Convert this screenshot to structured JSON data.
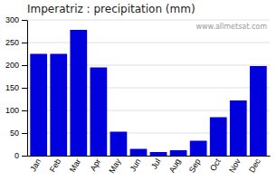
{
  "chart_data": {
    "type": "bar",
    "title": "Imperatriz : precipitation (mm)",
    "categories": [
      "Jan",
      "Feb",
      "Mar",
      "Apr",
      "May",
      "Jun",
      "Jul",
      "Aug",
      "Sep",
      "Oct",
      "Nov",
      "Dec"
    ],
    "values": [
      225,
      225,
      278,
      195,
      53,
      15,
      8,
      12,
      33,
      85,
      122,
      198
    ],
    "color": "#0000DD",
    "ylim": [
      0,
      300
    ],
    "yticks": [
      0,
      50,
      100,
      150,
      200,
      250,
      300
    ],
    "grid": true,
    "annotation": "www.allmetsat.com"
  }
}
